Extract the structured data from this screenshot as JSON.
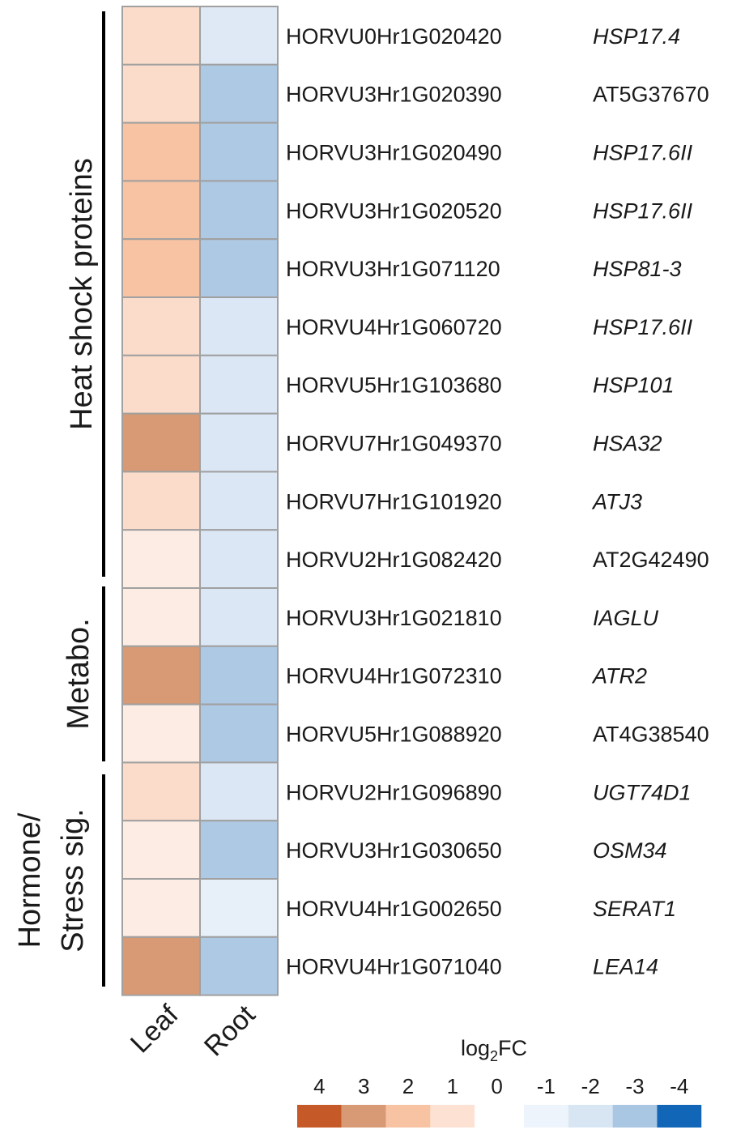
{
  "chart_data": {
    "type": "heatmap",
    "columns": [
      "Leaf",
      "Root"
    ],
    "rows": [
      {
        "gene_id": "HORVU0Hr1G020420",
        "annotation": "HSP17.4",
        "italic": true,
        "values": [
          1,
          -1
        ]
      },
      {
        "gene_id": "HORVU3Hr1G020390",
        "annotation": "AT5G37670",
        "italic": false,
        "values": [
          1,
          -3
        ]
      },
      {
        "gene_id": "HORVU3Hr1G020490",
        "annotation": "HSP17.6II",
        "italic": true,
        "values": [
          2,
          -3
        ]
      },
      {
        "gene_id": "HORVU3Hr1G020520",
        "annotation": "HSP17.6II",
        "italic": true,
        "values": [
          2,
          -3
        ]
      },
      {
        "gene_id": "HORVU3Hr1G071120",
        "annotation": "HSP81-3",
        "italic": true,
        "values": [
          2,
          -3
        ]
      },
      {
        "gene_id": "HORVU4Hr1G060720",
        "annotation": "HSP17.6II",
        "italic": true,
        "values": [
          1,
          -1
        ]
      },
      {
        "gene_id": "HORVU5Hr1G103680",
        "annotation": "HSP101",
        "italic": true,
        "values": [
          1,
          -1
        ]
      },
      {
        "gene_id": "HORVU7Hr1G049370",
        "annotation": "HSA32",
        "italic": true,
        "values": [
          3,
          -1
        ]
      },
      {
        "gene_id": "HORVU7Hr1G101920",
        "annotation": "ATJ3",
        "italic": true,
        "values": [
          1,
          -1
        ]
      },
      {
        "gene_id": "HORVU2Hr1G082420",
        "annotation": "AT2G42490",
        "italic": false,
        "values": [
          1,
          -1
        ]
      },
      {
        "gene_id": "HORVU3Hr1G021810",
        "annotation": "IAGLU",
        "italic": true,
        "values": [
          1,
          -1
        ]
      },
      {
        "gene_id": "HORVU4Hr1G072310",
        "annotation": "ATR2",
        "italic": true,
        "values": [
          3,
          -3
        ]
      },
      {
        "gene_id": "HORVU5Hr1G088920",
        "annotation": "AT4G38540",
        "italic": false,
        "values": [
          1,
          -3
        ]
      },
      {
        "gene_id": "HORVU2Hr1G096890",
        "annotation": "UGT74D1",
        "italic": true,
        "values": [
          1,
          -1
        ]
      },
      {
        "gene_id": "HORVU3Hr1G030650",
        "annotation": "OSM34",
        "italic": true,
        "values": [
          1,
          -3
        ]
      },
      {
        "gene_id": "HORVU4Hr1G002650",
        "annotation": "SERAT1",
        "italic": true,
        "values": [
          1,
          -1
        ]
      },
      {
        "gene_id": "HORVU4Hr1G071040",
        "annotation": "LEA14",
        "italic": true,
        "values": [
          3,
          -3
        ]
      }
    ],
    "cell_colors": [
      [
        "#fbdcca",
        "#dfe9f5"
      ],
      [
        "#fbdcca",
        "#aec9e3"
      ],
      [
        "#f7c3a3",
        "#aec9e3"
      ],
      [
        "#f7c3a3",
        "#aec9e3"
      ],
      [
        "#f7c3a3",
        "#aec9e3"
      ],
      [
        "#fbdcca",
        "#dbe7f4"
      ],
      [
        "#fbdcca",
        "#dbe7f4"
      ],
      [
        "#d89a74",
        "#dbe7f4"
      ],
      [
        "#fbdcca",
        "#dbe7f4"
      ],
      [
        "#fdece3",
        "#dbe7f4"
      ],
      [
        "#fdece3",
        "#dbe7f4"
      ],
      [
        "#d89a74",
        "#aec9e3"
      ],
      [
        "#fdece3",
        "#aec9e3"
      ],
      [
        "#fbdcca",
        "#dbe7f4"
      ],
      [
        "#fdece3",
        "#aec9e3"
      ],
      [
        "#fdece3",
        "#e7eff8"
      ],
      [
        "#d89a74",
        "#aec9e3"
      ]
    ],
    "groups": [
      {
        "lines": [
          "Heat shock proteins"
        ],
        "row_start": 0,
        "row_end": 9
      },
      {
        "lines": [
          "Metabo."
        ],
        "row_start": 10,
        "row_end": 12
      },
      {
        "lines": [
          "Hormone/",
          "Stress sig."
        ],
        "row_start": 13,
        "row_end": 16
      }
    ],
    "legend": {
      "title_main": "log",
      "title_sub": "2",
      "title_tail": "FC",
      "ticks": [
        "4",
        "3",
        "2",
        "1",
        "0",
        "-1",
        "-2",
        "-3",
        "-4"
      ],
      "colors": [
        "#c55a28",
        "#d89a74",
        "#f7c3a3",
        "#fde2d3",
        "#ffffff",
        "#eef4fb",
        "#d8e6f3",
        "#a9c6e2",
        "#1166b8"
      ]
    },
    "colors": {
      "cell_border": "#a0a0a0",
      "text": "#1a1a1a",
      "bracket": "#000000"
    }
  }
}
